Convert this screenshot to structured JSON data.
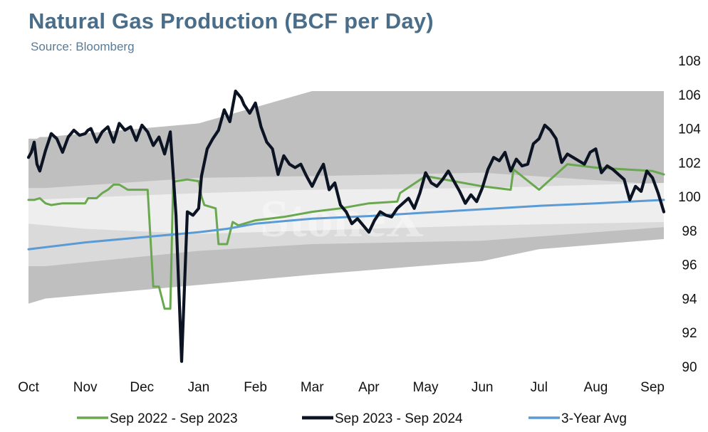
{
  "chart_data": {
    "type": "line",
    "title": "Natural Gas Production (BCF per Day)",
    "subtitle": "Source: Bloomberg",
    "watermark": "StoneX",
    "x_tick_labels": [
      "Oct",
      "Nov",
      "Dec",
      "Jan",
      "Feb",
      "Mar",
      "Apr",
      "May",
      "Jun",
      "Jul",
      "Aug",
      "Sep"
    ],
    "y_axis": {
      "position": "right",
      "ylim": [
        90,
        108
      ],
      "ticks": [
        90,
        92,
        94,
        96,
        98,
        100,
        102,
        104,
        106,
        108
      ]
    },
    "grid": false,
    "legend": {
      "placement": "bottom"
    },
    "x_range_months": [
      0,
      11.2
    ],
    "bands": {
      "min_max_color": "#bfbfbf",
      "inner_color": "#dadada",
      "core_color": "#eeeeee",
      "upper": {
        "x": [
          0,
          0.15,
          0.2,
          0.3,
          3,
          5,
          11.2
        ],
        "values": [
          103.4,
          103.4,
          103.5,
          103.5,
          104.3,
          106.2,
          106.2
        ]
      },
      "inner_upper": {
        "x": [
          0,
          0.3,
          3,
          5,
          8,
          11.2
        ],
        "values": [
          100.5,
          100.5,
          101.1,
          101.2,
          101.4,
          100.7
        ]
      },
      "core_upper": {
        "x": [
          0,
          3,
          5,
          8,
          11.2
        ],
        "values": [
          99.8,
          100.2,
          100.4,
          100.5,
          100.8
        ]
      },
      "core_lower": {
        "x": [
          0,
          1,
          3,
          5,
          8,
          11.2
        ],
        "values": [
          98.4,
          98.1,
          97.8,
          98.0,
          98.3,
          98.5
        ]
      },
      "inner_lower": {
        "x": [
          0,
          0.3,
          3,
          5,
          8,
          11.2
        ],
        "values": [
          95.9,
          95.9,
          96.8,
          97.2,
          97.4,
          98.2
        ]
      },
      "lower": {
        "x": [
          0,
          0.3,
          3,
          5,
          8,
          9,
          11.2
        ],
        "values": [
          93.7,
          94.0,
          94.8,
          95.4,
          96.2,
          96.9,
          97.5
        ]
      }
    },
    "series": [
      {
        "name": "Sep 2022 - Sep 2023",
        "color": "#6aa84f",
        "x": [
          0,
          0.1,
          0.2,
          0.3,
          0.4,
          0.5,
          0.6,
          0.8,
          1,
          1.05,
          1.2,
          1.3,
          1.4,
          1.5,
          1.6,
          1.75,
          1.85,
          1.95,
          2,
          2.1,
          2.2,
          2.3,
          2.4,
          2.5,
          2.55,
          2.6,
          2.8,
          3,
          3.05,
          3.1,
          3.3,
          3.35,
          3.5,
          3.6,
          3.7,
          4,
          4.5,
          5,
          5.5,
          6,
          6.5,
          6.55,
          7,
          7.5,
          8,
          8.5,
          8.55,
          9,
          9.5,
          10,
          10.5,
          11,
          11.2
        ],
        "values": [
          99.8,
          99.8,
          99.9,
          99.6,
          99.5,
          99.55,
          99.6,
          99.6,
          99.6,
          99.9,
          99.9,
          100.2,
          100.4,
          100.7,
          100.7,
          100.4,
          100.4,
          100.4,
          100.4,
          100.4,
          94.7,
          94.7,
          93.4,
          93.4,
          100.8,
          100.9,
          101,
          100.9,
          100,
          99.5,
          99.3,
          97.2,
          97.2,
          98.5,
          98.3,
          98.6,
          98.8,
          99.1,
          99.3,
          99.6,
          99.7,
          100.2,
          101.2,
          100.9,
          100.6,
          100.4,
          101.6,
          100.4,
          101.9,
          101.7,
          101.6,
          101.5,
          101.3
        ]
      },
      {
        "name": "Sep 2023 - Sep 2024",
        "color": "#0c1424",
        "x": [
          0,
          0.05,
          0.1,
          0.15,
          0.2,
          0.3,
          0.4,
          0.5,
          0.6,
          0.7,
          0.8,
          0.9,
          1,
          1.05,
          1.1,
          1.2,
          1.3,
          1.4,
          1.5,
          1.6,
          1.7,
          1.8,
          1.9,
          2,
          2.1,
          2.2,
          2.3,
          2.4,
          2.5,
          2.6,
          2.7,
          2.8,
          2.9,
          3,
          3.05,
          3.15,
          3.25,
          3.35,
          3.45,
          3.55,
          3.65,
          3.75,
          3.8,
          3.9,
          4,
          4.1,
          4.2,
          4.3,
          4.4,
          4.5,
          4.6,
          4.7,
          4.8,
          4.9,
          5,
          5.1,
          5.2,
          5.3,
          5.4,
          5.5,
          5.6,
          5.7,
          5.8,
          5.9,
          6,
          6.1,
          6.2,
          6.3,
          6.4,
          6.5,
          6.6,
          6.7,
          6.8,
          6.9,
          7,
          7.1,
          7.2,
          7.3,
          7.4,
          7.5,
          7.6,
          7.7,
          7.8,
          7.9,
          8,
          8.1,
          8.2,
          8.3,
          8.4,
          8.5,
          8.6,
          8.7,
          8.8,
          8.9,
          9,
          9.1,
          9.2,
          9.3,
          9.4,
          9.5,
          9.6,
          9.7,
          9.8,
          9.9,
          10,
          10.1,
          10.2,
          10.3,
          10.4,
          10.5,
          10.6,
          10.7,
          10.8,
          10.9,
          11,
          11.1,
          11.2
        ],
        "values": [
          102.3,
          102.6,
          103.2,
          101.9,
          101.5,
          102.7,
          103.7,
          103.4,
          102.6,
          103.5,
          103.9,
          103.6,
          103.7,
          103.9,
          104.0,
          103.2,
          103.8,
          104.1,
          103.2,
          104.3,
          103.9,
          104.1,
          103.3,
          104.2,
          103.8,
          103.0,
          103.5,
          102.5,
          103.8,
          98.9,
          90.3,
          99.1,
          98.9,
          99.3,
          101.2,
          102.8,
          103.4,
          103.9,
          105.1,
          104.4,
          106.2,
          105.8,
          105.4,
          104.9,
          105.5,
          104.1,
          103.2,
          102.8,
          101.3,
          102.4,
          101.9,
          101.7,
          101.9,
          101.2,
          100.6,
          101.3,
          101.9,
          100.4,
          100.8,
          99.5,
          99.1,
          98.4,
          98.7,
          98.3,
          97.9,
          98.6,
          99.1,
          98.9,
          98.8,
          99.3,
          99.6,
          99.9,
          99.3,
          100.2,
          101.4,
          100.8,
          100.6,
          101.0,
          101.5,
          100.9,
          100.3,
          99.6,
          100.1,
          99.7,
          100.5,
          101.6,
          102.3,
          102.1,
          102.6,
          101.5,
          102.2,
          101.8,
          101.9,
          103.1,
          103.4,
          104.2,
          103.9,
          103.4,
          102.0,
          102.5,
          102.3,
          102.1,
          101.9,
          102.6,
          102.8,
          101.4,
          101.8,
          101.6,
          101.3,
          101.0,
          99.8,
          100.6,
          100.3,
          101.5,
          101.1,
          100.2,
          99.1
        ]
      },
      {
        "name": "3-Year Avg",
        "color": "#5b9bd5",
        "x": [
          0,
          1,
          2,
          3,
          3.5,
          4,
          5,
          6,
          7,
          8,
          9,
          10,
          11.2
        ],
        "values": [
          96.9,
          97.3,
          97.6,
          97.9,
          98.1,
          98.4,
          98.7,
          98.85,
          99.05,
          99.25,
          99.45,
          99.6,
          99.8
        ]
      }
    ]
  }
}
